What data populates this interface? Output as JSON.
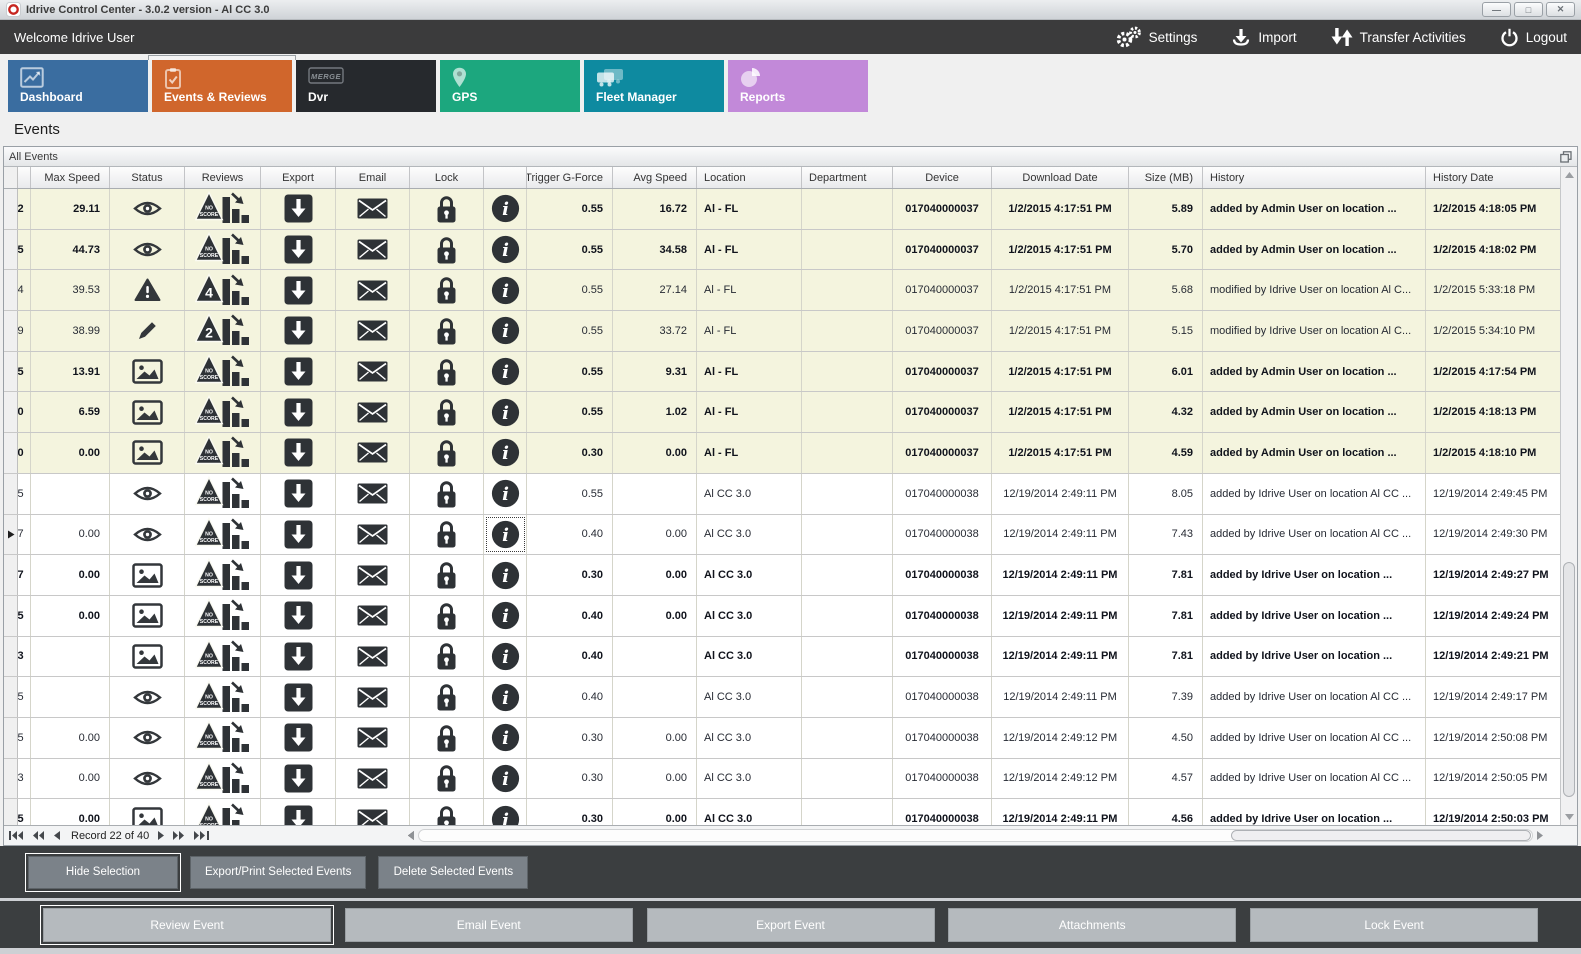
{
  "window": {
    "title": "Idrive Control Center - 3.0.2 version - Al CC 3.0",
    "controls": [
      {
        "name": "minimize-button",
        "icon": "minimize-icon",
        "glyph": "—"
      },
      {
        "name": "maximize-button",
        "icon": "maximize-icon",
        "glyph": "□"
      },
      {
        "name": "close-button",
        "icon": "close-icon",
        "glyph": "✕"
      }
    ]
  },
  "toolbar": {
    "welcome": "Welcome Idrive User",
    "actions": [
      {
        "label": "Settings",
        "icon": "gears-icon"
      },
      {
        "label": "Import",
        "icon": "import-icon"
      },
      {
        "label": "Transfer Activities",
        "icon": "transfer-arrows-icon"
      },
      {
        "label": "Logout",
        "icon": "power-icon"
      }
    ]
  },
  "nav_tabs": [
    {
      "label": "Dashboard",
      "color": "#3a6da0",
      "icon": "line-chart-icon",
      "active": false
    },
    {
      "label": "Events & Reviews",
      "color": "#d0662c",
      "icon": "clipboard-check-icon",
      "active": true
    },
    {
      "label": "Dvr",
      "color": "#26292d",
      "icon": "merge-badge-icon",
      "badge": "MERGE",
      "active": false
    },
    {
      "label": "GPS",
      "color": "#1ca77e",
      "icon": "map-pin-icon",
      "active": false
    },
    {
      "label": "Fleet Manager",
      "color": "#0e8aa0",
      "icon": "vehicles-icon",
      "active": false
    },
    {
      "label": "Reports",
      "color": "#c289d9",
      "icon": "pie-chart-icon",
      "active": false
    }
  ],
  "page": {
    "title": "Events",
    "panel_title": "All Events"
  },
  "table": {
    "columns": [
      "",
      "",
      "Max Speed",
      "Status",
      "Reviews",
      "Export",
      "Email",
      "Lock",
      "",
      "Trigger G-Force",
      "Avg Speed",
      "Location",
      "Department",
      "Device",
      "Download Date",
      "Size (MB)",
      "History",
      "History Date"
    ],
    "rows": [
      {
        "id_clip": "2",
        "max_speed": "29.11",
        "status": "eye",
        "review": "NO SCORE",
        "gforce": "0.55",
        "avg_speed": "16.72",
        "location": "Al - FL",
        "department": "",
        "device": "017040000037",
        "download_date": "1/2/2015 4:17:51 PM",
        "size": "5.89",
        "history": "added by Admin User on location ...",
        "history_date": "1/2/2015 4:18:05 PM",
        "bold": true,
        "shaded": true,
        "current": false,
        "focus_info": false
      },
      {
        "id_clip": "5",
        "max_speed": "44.73",
        "status": "eye",
        "review": "NO SCORE",
        "gforce": "0.55",
        "avg_speed": "34.58",
        "location": "Al - FL",
        "department": "",
        "device": "017040000037",
        "download_date": "1/2/2015 4:17:51 PM",
        "size": "5.70",
        "history": "added by Admin User on location ...",
        "history_date": "1/2/2015 4:18:02 PM",
        "bold": true,
        "shaded": true,
        "current": false,
        "focus_info": false
      },
      {
        "id_clip": "4",
        "max_speed": "39.53",
        "status": "warning",
        "review": "4",
        "gforce": "0.55",
        "avg_speed": "27.14",
        "location": "Al - FL",
        "department": "",
        "device": "017040000037",
        "download_date": "1/2/2015 4:17:51 PM",
        "size": "5.68",
        "history": "modified by Idrive User on location Al C...",
        "history_date": "1/2/2015 5:33:18 PM",
        "bold": false,
        "shaded": true,
        "current": false,
        "focus_info": false
      },
      {
        "id_clip": "9",
        "max_speed": "38.99",
        "status": "pencil",
        "review": "2",
        "gforce": "0.55",
        "avg_speed": "33.72",
        "location": "Al - FL",
        "department": "",
        "device": "017040000037",
        "download_date": "1/2/2015 4:17:51 PM",
        "size": "5.15",
        "history": "modified by Idrive User on location Al C...",
        "history_date": "1/2/2015 5:34:10 PM",
        "bold": false,
        "shaded": true,
        "current": false,
        "focus_info": false
      },
      {
        "id_clip": "5",
        "max_speed": "13.91",
        "status": "image",
        "review": "NO SCORE",
        "gforce": "0.55",
        "avg_speed": "9.31",
        "location": "Al - FL",
        "department": "",
        "device": "017040000037",
        "download_date": "1/2/2015 4:17:51 PM",
        "size": "6.01",
        "history": "added by Admin User on location ...",
        "history_date": "1/2/2015 4:17:54 PM",
        "bold": true,
        "shaded": true,
        "current": false,
        "focus_info": false
      },
      {
        "id_clip": "0",
        "max_speed": "6.59",
        "status": "image",
        "review": "NO SCORE",
        "gforce": "0.55",
        "avg_speed": "1.02",
        "location": "Al - FL",
        "department": "",
        "device": "017040000037",
        "download_date": "1/2/2015 4:17:51 PM",
        "size": "4.32",
        "history": "added by Admin User on location ...",
        "history_date": "1/2/2015 4:18:13 PM",
        "bold": true,
        "shaded": true,
        "current": false,
        "focus_info": false
      },
      {
        "id_clip": "0",
        "max_speed": "0.00",
        "status": "image",
        "review": "NO SCORE",
        "gforce": "0.30",
        "avg_speed": "0.00",
        "location": "Al - FL",
        "department": "",
        "device": "017040000037",
        "download_date": "1/2/2015 4:17:51 PM",
        "size": "4.59",
        "history": "added by Admin User on location ...",
        "history_date": "1/2/2015 4:18:10 PM",
        "bold": true,
        "shaded": true,
        "current": false,
        "focus_info": false
      },
      {
        "id_clip": "5",
        "max_speed": "",
        "status": "eye",
        "review": "NO SCORE",
        "gforce": "0.55",
        "avg_speed": "",
        "location": "Al CC 3.0",
        "department": "",
        "device": "017040000038",
        "download_date": "12/19/2014 2:49:11 PM",
        "size": "8.05",
        "history": "added by Idrive User on location Al CC ...",
        "history_date": "12/19/2014 2:49:45 PM",
        "bold": false,
        "shaded": false,
        "current": false,
        "focus_info": false
      },
      {
        "id_clip": "7",
        "max_speed": "0.00",
        "status": "eye",
        "review": "NO SCORE",
        "gforce": "0.40",
        "avg_speed": "0.00",
        "location": "Al CC 3.0",
        "department": "",
        "device": "017040000038",
        "download_date": "12/19/2014 2:49:11 PM",
        "size": "7.43",
        "history": "added by Idrive User on location Al CC ...",
        "history_date": "12/19/2014 2:49:30 PM",
        "bold": false,
        "shaded": false,
        "current": true,
        "focus_info": true
      },
      {
        "id_clip": "7",
        "max_speed": "0.00",
        "status": "image",
        "review": "NO SCORE",
        "gforce": "0.30",
        "avg_speed": "0.00",
        "location": "Al CC 3.0",
        "department": "",
        "device": "017040000038",
        "download_date": "12/19/2014 2:49:11 PM",
        "size": "7.81",
        "history": "added by Idrive User on location ...",
        "history_date": "12/19/2014 2:49:27 PM",
        "bold": true,
        "shaded": false,
        "current": false,
        "focus_info": false
      },
      {
        "id_clip": "5",
        "max_speed": "0.00",
        "status": "image",
        "review": "NO SCORE",
        "gforce": "0.40",
        "avg_speed": "0.00",
        "location": "Al CC 3.0",
        "department": "",
        "device": "017040000038",
        "download_date": "12/19/2014 2:49:11 PM",
        "size": "7.81",
        "history": "added by Idrive User on location ...",
        "history_date": "12/19/2014 2:49:24 PM",
        "bold": true,
        "shaded": false,
        "current": false,
        "focus_info": false
      },
      {
        "id_clip": "3",
        "max_speed": "",
        "status": "image",
        "review": "NO SCORE",
        "gforce": "0.40",
        "avg_speed": "",
        "location": "Al CC 3.0",
        "department": "",
        "device": "017040000038",
        "download_date": "12/19/2014 2:49:11 PM",
        "size": "7.81",
        "history": "added by Idrive User on location ...",
        "history_date": "12/19/2014 2:49:21 PM",
        "bold": true,
        "shaded": false,
        "current": false,
        "focus_info": false
      },
      {
        "id_clip": "5",
        "max_speed": "",
        "status": "eye",
        "review": "NO SCORE",
        "gforce": "0.40",
        "avg_speed": "",
        "location": "Al CC 3.0",
        "department": "",
        "device": "017040000038",
        "download_date": "12/19/2014 2:49:11 PM",
        "size": "7.39",
        "history": "added by Idrive User on location Al CC ...",
        "history_date": "12/19/2014 2:49:17 PM",
        "bold": false,
        "shaded": false,
        "current": false,
        "focus_info": false
      },
      {
        "id_clip": "5",
        "max_speed": "0.00",
        "status": "eye",
        "review": "NO SCORE",
        "gforce": "0.30",
        "avg_speed": "0.00",
        "location": "Al CC 3.0",
        "department": "",
        "device": "017040000038",
        "download_date": "12/19/2014 2:49:12 PM",
        "size": "4.50",
        "history": "added by Idrive User on location Al CC ...",
        "history_date": "12/19/2014 2:50:08 PM",
        "bold": false,
        "shaded": false,
        "current": false,
        "focus_info": false
      },
      {
        "id_clip": "3",
        "max_speed": "0.00",
        "status": "eye",
        "review": "NO SCORE",
        "gforce": "0.30",
        "avg_speed": "0.00",
        "location": "Al CC 3.0",
        "department": "",
        "device": "017040000038",
        "download_date": "12/19/2014 2:49:12 PM",
        "size": "4.57",
        "history": "added by Idrive User on location Al CC ...",
        "history_date": "12/19/2014 2:50:05 PM",
        "bold": false,
        "shaded": false,
        "current": false,
        "focus_info": false
      },
      {
        "id_clip": "5",
        "max_speed": "0.00",
        "status": "image",
        "review": "NO SCORE",
        "gforce": "0.30",
        "avg_speed": "0.00",
        "location": "Al CC 3.0",
        "department": "",
        "device": "017040000038",
        "download_date": "12/19/2014 2:49:11 PM",
        "size": "4.56",
        "history": "added by Idrive User on location ...",
        "history_date": "12/19/2014 2:50:03 PM",
        "bold": true,
        "shaded": false,
        "current": false,
        "focus_info": false
      }
    ]
  },
  "navigator": {
    "record_label": "Record 22 of 40"
  },
  "action_bars": {
    "selection": [
      "Hide Selection",
      "Export/Print Selected Events",
      "Delete Selected  Events"
    ],
    "event": [
      "Review Event",
      "Email Event",
      "Export Event",
      "Attachments",
      "Lock Event"
    ]
  }
}
